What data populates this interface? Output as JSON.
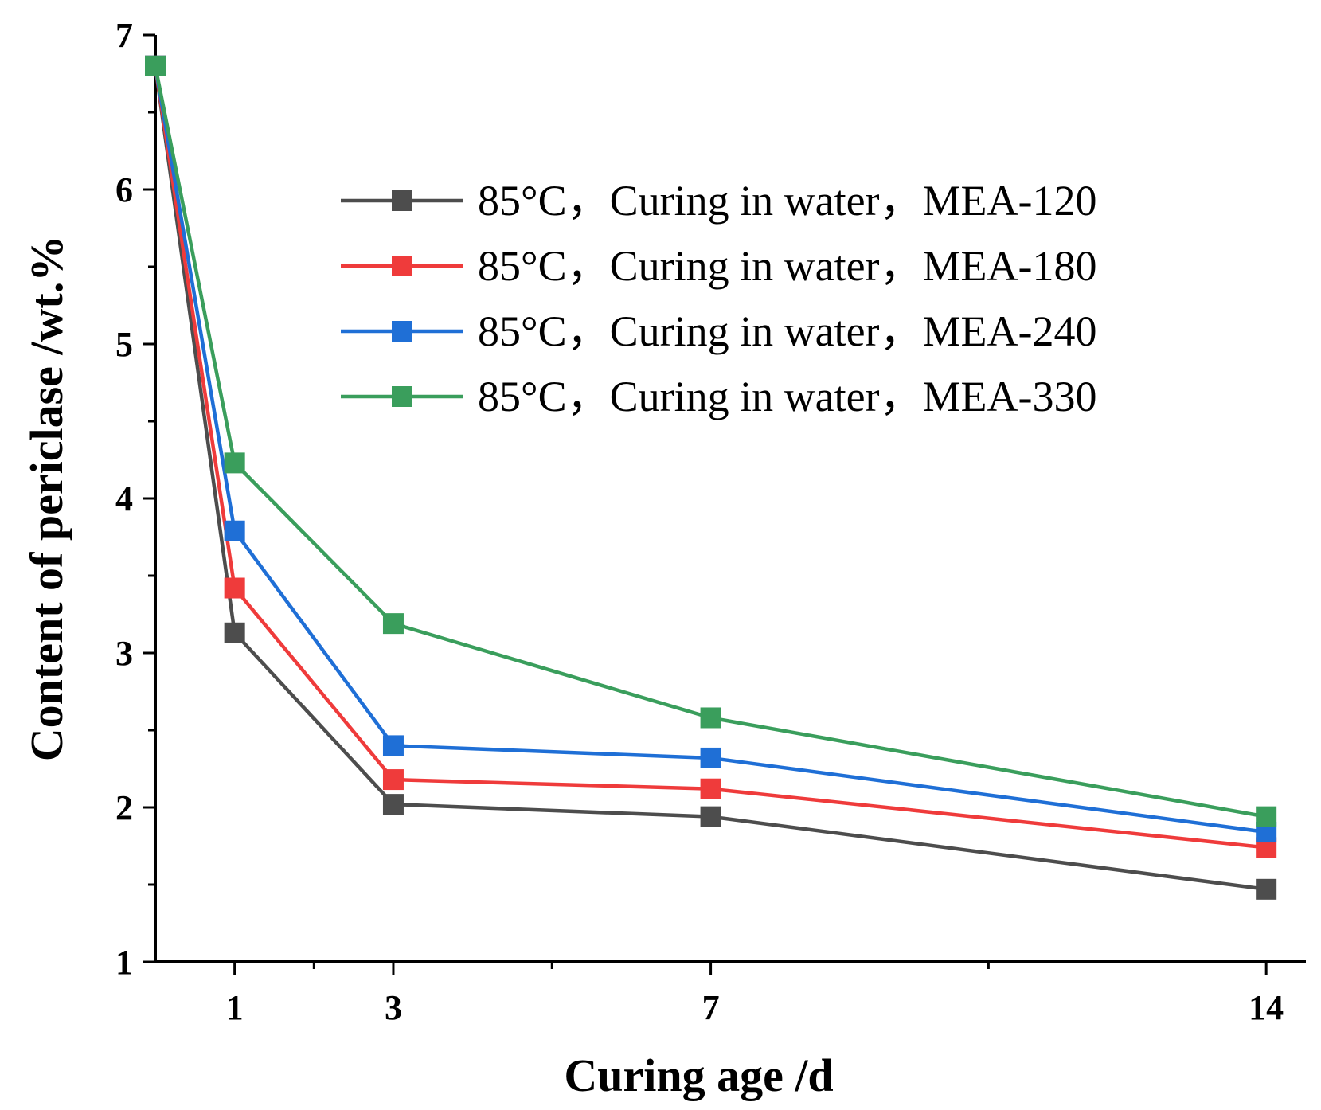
{
  "chart_data": {
    "type": "line",
    "title": "",
    "xlabel": "Curing age /d",
    "ylabel": "Content of periclase /wt.%",
    "xlim": [
      0,
      14.5
    ],
    "ylim": [
      1,
      7
    ],
    "xticks": [
      1,
      3,
      7,
      14
    ],
    "yticks": [
      1,
      2,
      3,
      4,
      5,
      6,
      7
    ],
    "x": [
      0,
      1,
      3,
      7,
      14
    ],
    "legend_position": "top-right",
    "series": [
      {
        "name": "85°C，Curing in water，MEA-120",
        "color": "#4d4d4d",
        "values": [
          6.8,
          3.13,
          2.02,
          1.94,
          1.47
        ]
      },
      {
        "name": "85°C，Curing in water，MEA-180",
        "color": "#ef3b3b",
        "values": [
          6.8,
          3.42,
          2.18,
          2.12,
          1.74
        ]
      },
      {
        "name": "85°C，Curing in water，MEA-240",
        "color": "#1f6fd6",
        "values": [
          6.8,
          3.79,
          2.4,
          2.32,
          1.84
        ]
      },
      {
        "name": "85°C，Curing in water，MEA-330",
        "color": "#3a9e5c",
        "values": [
          6.8,
          4.23,
          3.19,
          2.58,
          1.94
        ]
      }
    ]
  }
}
